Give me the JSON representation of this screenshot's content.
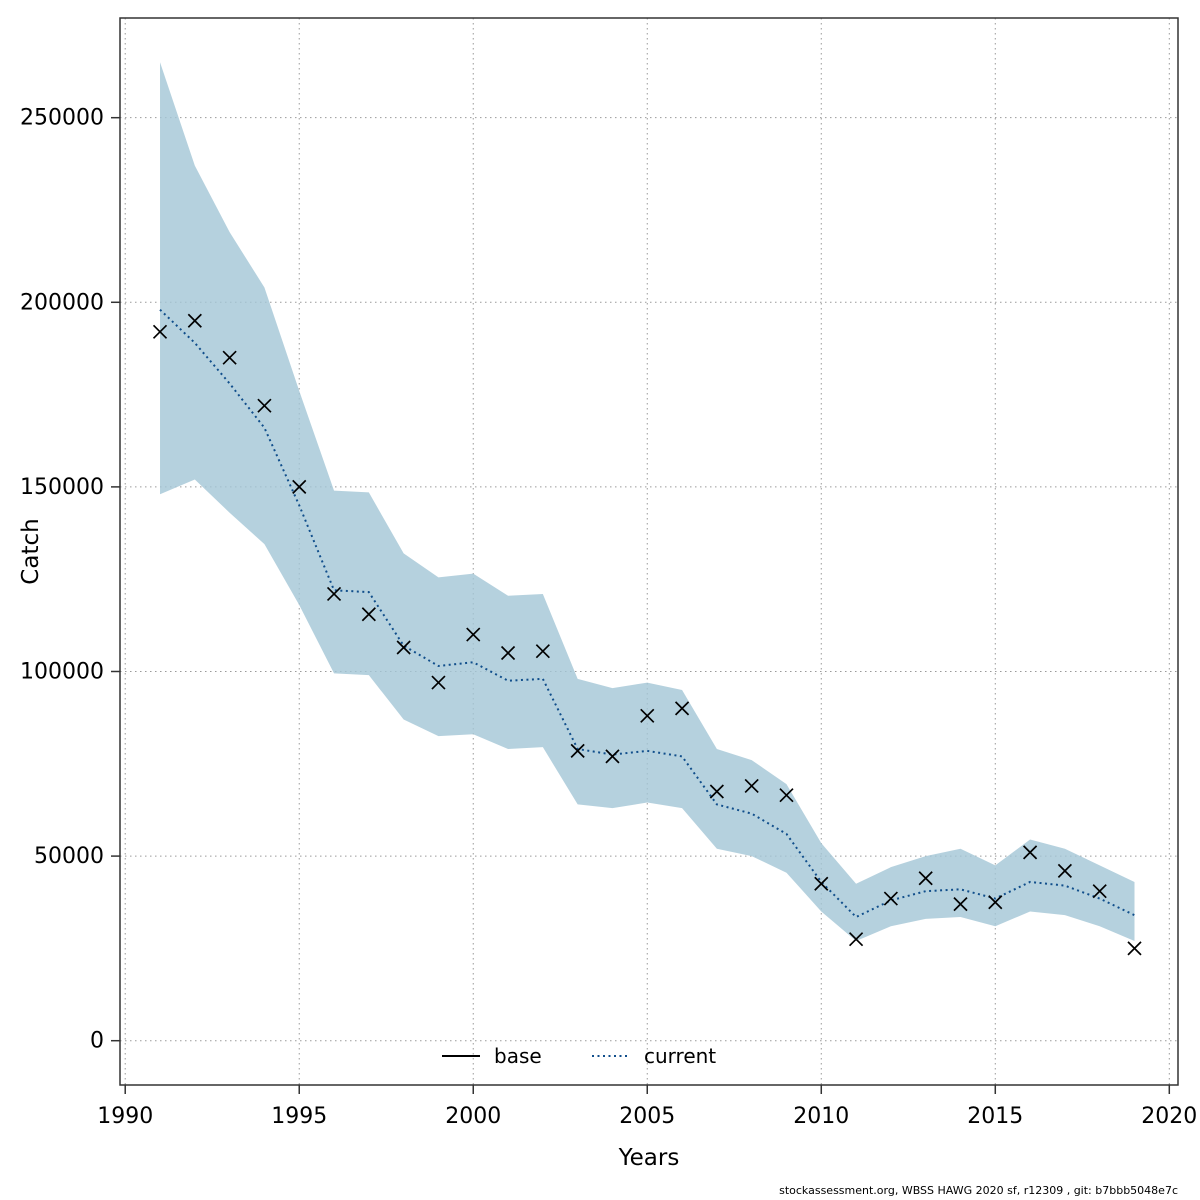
{
  "footer": {
    "text": "stockassessment.org, WBSS HAWG 2020 sf, r12309 , git: b7bbb5048e7c"
  },
  "chart_data": {
    "type": "line",
    "title": "",
    "xlabel": "Years",
    "ylabel": "Catch",
    "x_ticks": [
      1990,
      1995,
      2000,
      2005,
      2010,
      2015,
      2020
    ],
    "y_ticks": [
      0,
      50000,
      100000,
      150000,
      200000,
      250000
    ],
    "xlim": [
      1989.85,
      2020.25
    ],
    "ylim": [
      -12000,
      277000
    ],
    "grid": true,
    "grid_style": "dotted",
    "legend_position": "bottom-center-inside",
    "colors": {
      "ribbon": "#a3c6d6",
      "current_line": "#104e8b",
      "base_line": "#000000",
      "marker": "#000000",
      "grid": "#9a9a9a",
      "box": "#333333"
    },
    "years": [
      1991,
      1992,
      1993,
      1994,
      1995,
      1996,
      1997,
      1998,
      1999,
      2000,
      2001,
      2002,
      2003,
      2004,
      2005,
      2006,
      2007,
      2008,
      2009,
      2010,
      2011,
      2012,
      2013,
      2014,
      2015,
      2016,
      2017,
      2018,
      2019
    ],
    "series": [
      {
        "name": "observed_catch",
        "style": "x-markers",
        "values": [
          192000,
          195000,
          185000,
          172000,
          150000,
          121000,
          115500,
          106500,
          97000,
          110000,
          105000,
          105500,
          78500,
          77000,
          88000,
          90000,
          67500,
          69000,
          66500,
          42500,
          27500,
          38500,
          44000,
          37000,
          37500,
          51000,
          46000,
          40500,
          25000
        ]
      },
      {
        "name": "current",
        "style": "dotted-line",
        "values": [
          198000,
          189000,
          178000,
          166000,
          145000,
          122000,
          121500,
          107000,
          101500,
          102500,
          97500,
          98000,
          79000,
          77500,
          78500,
          77000,
          64000,
          61500,
          56000,
          43000,
          33500,
          38000,
          40500,
          41000,
          38500,
          43000,
          42000,
          38500,
          34000
        ]
      }
    ],
    "ribbon": {
      "upper": [
        265000,
        237000,
        219000,
        204000,
        176000,
        149000,
        148500,
        132000,
        125500,
        126500,
        120500,
        121000,
        98000,
        95500,
        97000,
        95000,
        79000,
        76000,
        69500,
        53500,
        42500,
        47000,
        50000,
        52000,
        47500,
        54500,
        52000,
        47500,
        43000
      ],
      "lower": [
        148000,
        152000,
        143000,
        134500,
        118000,
        99500,
        99000,
        87000,
        82500,
        83000,
        79000,
        79500,
        64000,
        63000,
        64500,
        63000,
        52000,
        50000,
        45500,
        35000,
        27000,
        31000,
        33000,
        33500,
        31000,
        35000,
        34000,
        31000,
        27000
      ]
    },
    "legend": [
      {
        "label": "base",
        "style": "solid",
        "color": "#000000"
      },
      {
        "label": "current",
        "style": "dotted",
        "color": "#104e8b"
      }
    ]
  }
}
